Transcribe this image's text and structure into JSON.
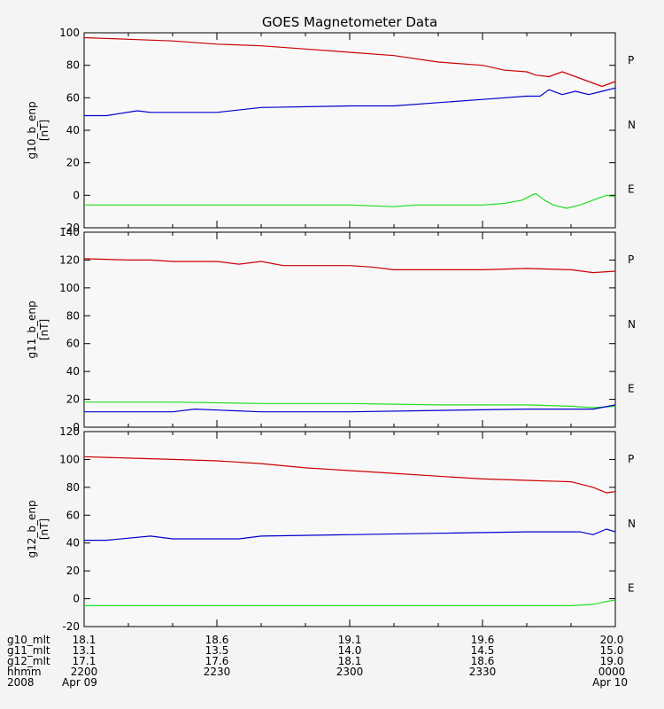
{
  "chart_data": {
    "type": "line",
    "title": "GOES Magnetometer Data",
    "x": {
      "domain_minutes": [
        0,
        120
      ],
      "ticks_minutes": [
        0,
        30,
        60,
        90,
        120
      ],
      "tick_rows": [
        {
          "label": "g10_mlt",
          "values": [
            "18.1",
            "18.6",
            "19.1",
            "19.6",
            "20.0"
          ]
        },
        {
          "label": "g11_mlt",
          "values": [
            "13.1",
            "13.5",
            "14.0",
            "14.5",
            "15.0"
          ]
        },
        {
          "label": "g12_mlt",
          "values": [
            "17.1",
            "17.6",
            "18.1",
            "18.6",
            "19.0"
          ]
        },
        {
          "label": "hhmm",
          "values": [
            "2200",
            "2230",
            "2300",
            "2330",
            "0000"
          ]
        },
        {
          "label": "2008",
          "values": [
            "Apr 09",
            "",
            "",
            "",
            "Apr 10"
          ]
        }
      ]
    },
    "panels": [
      {
        "ylabel": "g10_b_enp",
        "unit": "[nT]",
        "ylim": [
          -20,
          100
        ],
        "yticks": [
          -20,
          0,
          20,
          40,
          60,
          80,
          100
        ],
        "series": [
          {
            "name": "P",
            "color": "#cc0000",
            "x": [
              0,
              10,
              20,
              30,
              40,
              50,
              60,
              70,
              80,
              90,
              95,
              100,
              102,
              105,
              108,
              111,
              114,
              117,
              120
            ],
            "y": [
              97,
              96,
              95,
              93,
              92,
              90,
              88,
              86,
              82,
              80,
              77,
              76,
              74,
              73,
              76,
              73,
              70,
              67,
              70
            ]
          },
          {
            "name": "N",
            "color": "#22dd22",
            "x": [
              0,
              10,
              20,
              30,
              40,
              50,
              60,
              70,
              75,
              80,
              85,
              90,
              95,
              99,
              101,
              102,
              104,
              106,
              109,
              112,
              115,
              118,
              120
            ],
            "y": [
              -6,
              -6,
              -6,
              -6,
              -6,
              -6,
              -6,
              -7,
              -6,
              -6,
              -6,
              -6,
              -5,
              -3,
              0,
              1,
              -3,
              -6,
              -8,
              -6,
              -3,
              0,
              -1
            ]
          },
          {
            "name": "E",
            "color": "#0000cc",
            "x": [
              0,
              5,
              12,
              15,
              30,
              40,
              60,
              70,
              80,
              90,
              100,
              103,
              105,
              108,
              111,
              114,
              117,
              120
            ],
            "y": [
              49,
              49,
              52,
              51,
              51,
              54,
              55,
              55,
              57,
              59,
              61,
              61,
              65,
              62,
              64,
              62,
              64,
              66
            ]
          }
        ]
      },
      {
        "ylabel": "g11_b_enp",
        "unit": "[nT]",
        "ylim": [
          0,
          140
        ],
        "yticks": [
          0,
          20,
          40,
          60,
          80,
          100,
          120,
          140
        ],
        "series": [
          {
            "name": "P",
            "color": "#cc0000",
            "x": [
              0,
              10,
              15,
              20,
              30,
              35,
              40,
              45,
              60,
              65,
              70,
              80,
              90,
              100,
              110,
              115,
              120
            ],
            "y": [
              121,
              120,
              120,
              119,
              119,
              117,
              119,
              116,
              116,
              115,
              113,
              113,
              113,
              114,
              113,
              111,
              112
            ]
          },
          {
            "name": "N",
            "color": "#22dd22",
            "x": [
              0,
              20,
              40,
              60,
              80,
              100,
              110,
              115,
              120
            ],
            "y": [
              18,
              18,
              17,
              17,
              16,
              16,
              15,
              14,
              15
            ]
          },
          {
            "name": "E",
            "color": "#0000cc",
            "x": [
              0,
              20,
              25,
              40,
              60,
              80,
              100,
              110,
              115,
              120
            ],
            "y": [
              11,
              11,
              13,
              11,
              11,
              12,
              13,
              13,
              13,
              16
            ]
          }
        ]
      },
      {
        "ylabel": "g12_b_enp",
        "unit": "[nT]",
        "ylim": [
          -20,
          120
        ],
        "yticks": [
          -20,
          0,
          20,
          40,
          60,
          80,
          100,
          120
        ],
        "series": [
          {
            "name": "P",
            "color": "#cc0000",
            "x": [
              0,
              10,
              20,
              30,
              40,
              50,
              60,
              70,
              80,
              90,
              100,
              110,
              115,
              118,
              120
            ],
            "y": [
              102,
              101,
              100,
              99,
              97,
              94,
              92,
              90,
              88,
              86,
              85,
              84,
              80,
              76,
              77
            ]
          },
          {
            "name": "N",
            "color": "#22dd22",
            "x": [
              0,
              20,
              40,
              60,
              80,
              100,
              110,
              115,
              118,
              120
            ],
            "y": [
              -5,
              -5,
              -5,
              -5,
              -5,
              -5,
              -5,
              -4,
              -2,
              -1
            ]
          },
          {
            "name": "E",
            "color": "#0000cc",
            "x": [
              0,
              5,
              15,
              20,
              35,
              40,
              60,
              80,
              100,
              108,
              112,
              115,
              118,
              120
            ],
            "y": [
              42,
              42,
              45,
              43,
              43,
              45,
              46,
              47,
              48,
              48,
              48,
              46,
              50,
              48
            ]
          }
        ]
      }
    ],
    "legend_placement": "right of each panel"
  }
}
